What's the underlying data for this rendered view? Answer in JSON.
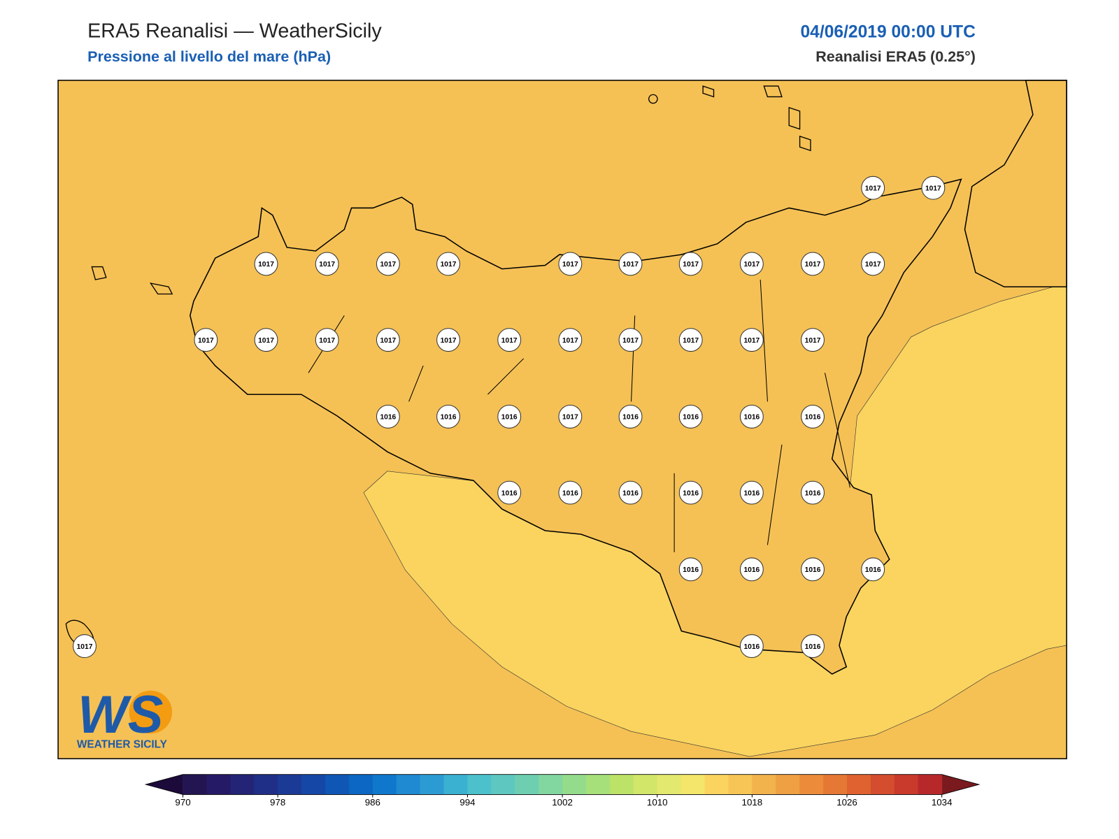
{
  "header": {
    "title": "ERA5 Reanalisi — WeatherSicily",
    "subtitle": "Pressione al livello del mare (hPa)",
    "date": "04/06/2019 00:00 UTC",
    "source": "Reanalisi ERA5 (0.25°)"
  },
  "stations": [
    1017,
    1017,
    1017,
    1017,
    1017,
    1017,
    1017,
    1017,
    1017,
    1017,
    1017,
    1017,
    1017,
    1017,
    1017,
    1017,
    1017,
    1017,
    1017,
    1017,
    1017,
    1017,
    1017,
    1016,
    1016,
    1016,
    1017,
    1016,
    1016,
    1016,
    1016,
    1016,
    1016,
    1016,
    1016,
    1016,
    1016,
    1016,
    1016,
    1016,
    1016,
    1017,
    1016,
    1016
  ],
  "colorbar": {
    "ticks": [
      970,
      978,
      986,
      994,
      1002,
      1010,
      1018,
      1026,
      1034
    ],
    "colors": [
      "#231551",
      "#251a66",
      "#232476",
      "#1f2f87",
      "#1b3a96",
      "#1547a6",
      "#1056b5",
      "#0b67c3",
      "#0f78cc",
      "#1f8ad1",
      "#2d9bd3",
      "#3ab1d1",
      "#4cc0cb",
      "#5ec8c0",
      "#6ecfb0",
      "#82d6a0",
      "#94db8c",
      "#a6e07a",
      "#bde268",
      "#d2e66a",
      "#e3e86e",
      "#f3e66a",
      "#fad45f",
      "#f7c456",
      "#f2b24c",
      "#eea043",
      "#ec8c3a",
      "#e67835",
      "#df6230",
      "#d44d2e",
      "#c9392c",
      "#b7282b"
    ],
    "under": "#1c0a3a",
    "over": "#7a1a1e"
  },
  "logo": {
    "initials": "WS",
    "name": "WEATHER SICILY"
  }
}
